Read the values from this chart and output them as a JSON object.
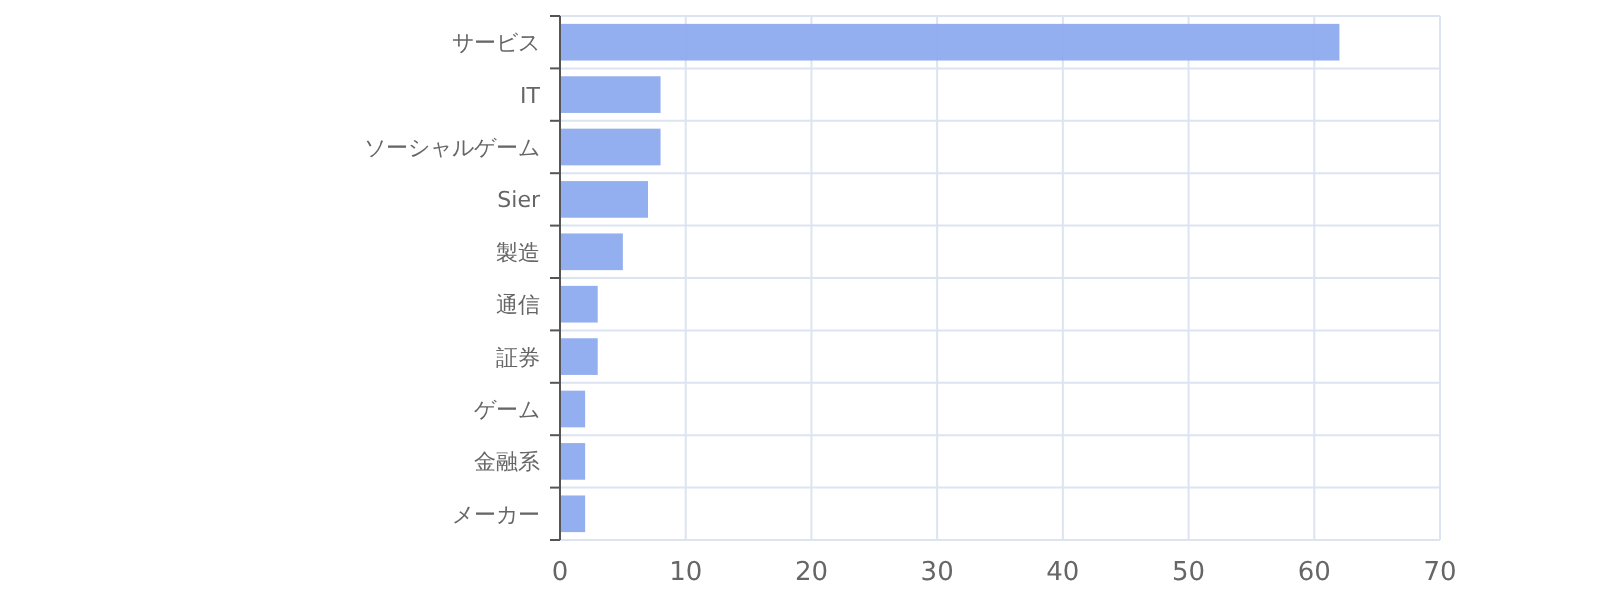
{
  "chart_data": {
    "type": "bar",
    "orientation": "horizontal",
    "categories": [
      "サービス",
      "IT",
      "ソーシャルゲーム",
      "Sier",
      "製造",
      "通信",
      "証券",
      "ゲーム",
      "金融系",
      "メーカー"
    ],
    "values": [
      62,
      8,
      8,
      7,
      5,
      3,
      3,
      2,
      2,
      2
    ],
    "color": "#8eabee",
    "xlim": [
      0,
      70
    ],
    "xticks": [
      0,
      10,
      20,
      30,
      40,
      50,
      60,
      70
    ],
    "grid": true
  }
}
